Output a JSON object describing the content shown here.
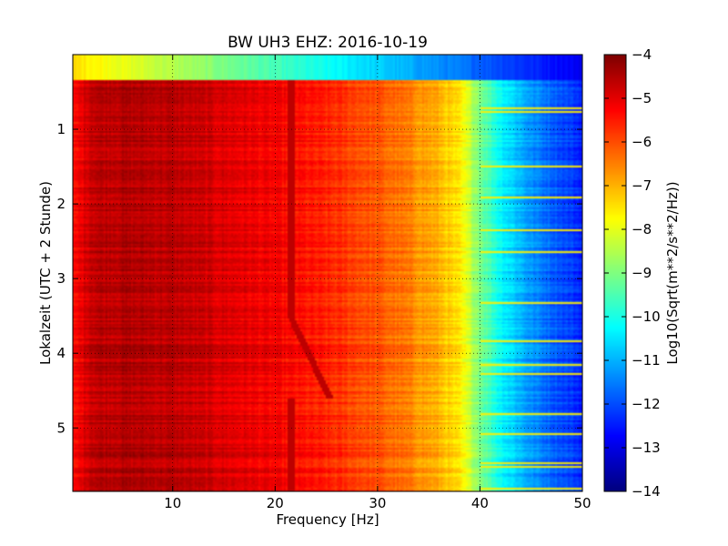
{
  "chart_data": {
    "type": "heatmap",
    "title": "BW UH3 EHZ: 2016-10-19",
    "xlabel": "Frequency [Hz]",
    "ylabel": "Lokalzeit (UTC + 2 Stunde)",
    "colorbar_label": "Log10(Sqrt(m**2/s**2/Hz))",
    "xlim": [
      0.25,
      50
    ],
    "ylim": [
      5.85,
      0
    ],
    "y_inverted": true,
    "grid": true,
    "colormap": "jet",
    "value_range": [
      -14,
      -4
    ],
    "x_ticks": [
      10,
      20,
      30,
      40,
      50
    ],
    "x_tick_labels": [
      "10",
      "20",
      "30",
      "40",
      "50"
    ],
    "y_ticks": [
      1,
      2,
      3,
      4,
      5
    ],
    "y_tick_labels": [
      "1",
      "2",
      "3",
      "4",
      "5"
    ],
    "colorbar_ticks": [
      -4,
      -5,
      -6,
      -7,
      -8,
      -9,
      -10,
      -11,
      -12,
      -13,
      -14
    ],
    "colorbar_tick_labels": [
      "−4",
      "−5",
      "−6",
      "−7",
      "−8",
      "−9",
      "−10",
      "−11",
      "−12",
      "−13",
      "−14"
    ],
    "frequency_profile_hz": [
      0,
      2,
      5,
      10,
      15,
      20,
      25,
      30,
      33,
      36,
      38,
      40,
      42,
      45,
      48,
      50
    ],
    "frequency_profile_log10": [
      -5.6,
      -4.6,
      -4.5,
      -4.6,
      -4.9,
      -5.2,
      -5.6,
      -6.1,
      -6.5,
      -7.0,
      -7.6,
      -9.0,
      -10.2,
      -11.3,
      -12.0,
      -12.4
    ],
    "spectral_line_hz": 21.5,
    "spectral_line_log10": -4.6,
    "first_segment_end_hours": 0.33
  }
}
